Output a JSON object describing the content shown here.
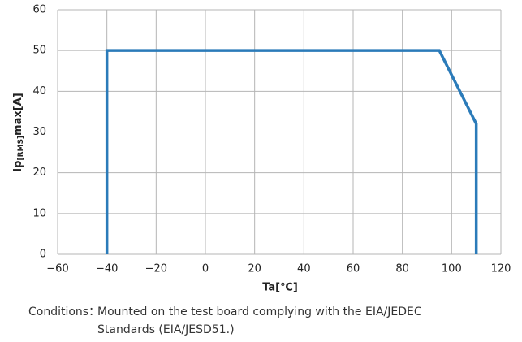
{
  "chart_data": {
    "type": "line",
    "x_label": "Ta[℃]",
    "y_label": {
      "main": "Ip",
      "sub": "[RMS]",
      "suffix": "max[A]"
    },
    "series": [
      {
        "color": "#2b7bb9",
        "x": [
          -40,
          -40,
          95,
          110,
          110
        ],
        "values": [
          0,
          50,
          50,
          32,
          0
        ]
      }
    ],
    "xlim": [
      -60,
      120
    ],
    "xticks": [
      {
        "value": -60,
        "label": "−60"
      },
      {
        "value": -40,
        "label": "−40"
      },
      {
        "value": -20,
        "label": "−20"
      },
      0,
      20,
      40,
      60,
      80,
      100,
      120
    ],
    "ylim": [
      0,
      60
    ],
    "yticks": [
      0,
      10,
      20,
      30,
      40,
      50,
      60
    ],
    "grid": true,
    "notes": {
      "head": "Conditions：",
      "lines": [
        "Mounted on the test board complying with the EIA/JEDEC",
        "Standards (EIA/JESD51.)"
      ]
    }
  }
}
